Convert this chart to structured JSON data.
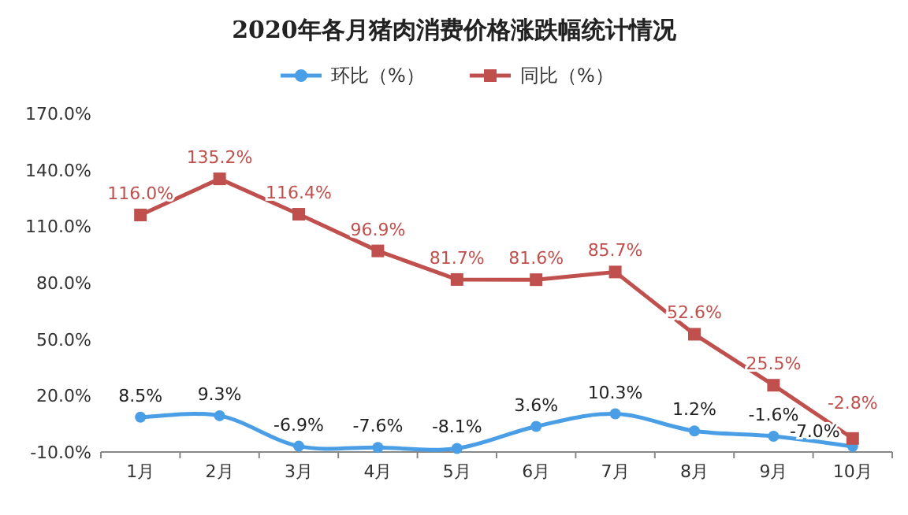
{
  "chart_data": {
    "type": "line",
    "title": "2020年各月猪肉消费价格涨跌幅统计情况",
    "categories": [
      "1月",
      "2月",
      "3月",
      "4月",
      "5月",
      "6月",
      "7月",
      "8月",
      "9月",
      "10月"
    ],
    "series": [
      {
        "name": "环比（%）",
        "color": "#4a9ee6",
        "marker": "circle",
        "values": [
          8.5,
          9.3,
          -6.9,
          -7.6,
          -8.1,
          3.6,
          10.3,
          1.2,
          -1.6,
          -7.0
        ],
        "value_labels": [
          "8.5%",
          "9.3%",
          "-6.9%",
          "-7.6%",
          "-8.1%",
          "3.6%",
          "10.3%",
          "1.2%",
          "-1.6%",
          "-7.0%"
        ]
      },
      {
        "name": "同比（%）",
        "color": "#c0504d",
        "marker": "square",
        "values": [
          116.0,
          135.2,
          116.4,
          96.9,
          81.7,
          81.6,
          85.7,
          52.6,
          25.5,
          -2.8
        ],
        "value_labels": [
          "116.0%",
          "135.2%",
          "116.4%",
          "96.9%",
          "81.7%",
          "81.6%",
          "85.7%",
          "52.6%",
          "25.5%",
          "-2.8%"
        ]
      }
    ],
    "ylim": [
      -10,
      170
    ],
    "yticks": [
      {
        "value": -10,
        "label": "-10.0%"
      },
      {
        "value": 20,
        "label": "20.0%"
      },
      {
        "value": 50,
        "label": "50.0%"
      },
      {
        "value": 80,
        "label": "80.0%"
      },
      {
        "value": 110,
        "label": "110.0%"
      },
      {
        "value": 140,
        "label": "140.0%"
      },
      {
        "value": 170,
        "label": "170.0%"
      }
    ],
    "legend": "top"
  }
}
